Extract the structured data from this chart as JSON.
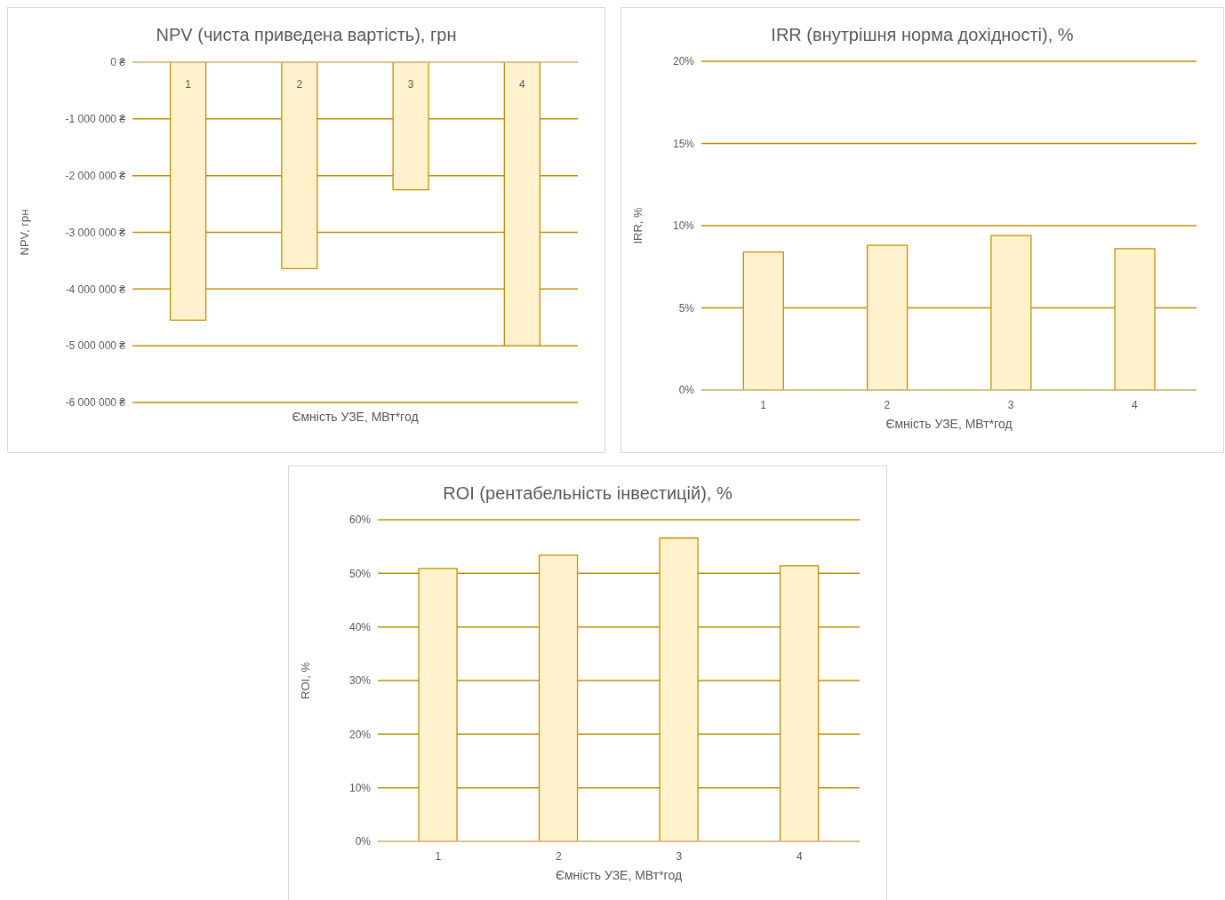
{
  "chart_data": [
    {
      "type": "bar",
      "title": "NPV (чиста приведена вартість), грн",
      "xlabel": "Ємність УЗЕ, МВт*год",
      "ylabel": "NPV, грн",
      "categories": [
        "1",
        "2",
        "3",
        "4"
      ],
      "series": [
        {
          "color": "#fff2cc",
          "values": [
            -4550000,
            -3640000,
            -2250000,
            -5000000
          ]
        }
      ],
      "ylim": [
        -6000000,
        0
      ],
      "yticks": [
        {
          "value": -6000000,
          "label": "-6 000 000 ₴"
        },
        {
          "value": -5000000,
          "label": "-5 000 000 ₴"
        },
        {
          "value": -4000000,
          "label": "-4 000 000 ₴"
        },
        {
          "value": -3000000,
          "label": "-3 000 000 ₴"
        },
        {
          "value": -2000000,
          "label": "-2 000 000 ₴"
        },
        {
          "value": -1000000,
          "label": "-1 000 000 ₴"
        },
        {
          "value": 0,
          "label": "0 ₴"
        }
      ],
      "grid": "y",
      "legend": false
    },
    {
      "type": "bar",
      "title": "IRR (внутрішня норма дохідності), %",
      "xlabel": "Ємність УЗЕ, МВт*год",
      "ylabel": "IRR, %",
      "categories": [
        "1",
        "2",
        "3",
        "4"
      ],
      "series": [
        {
          "color": "#fff2cc",
          "values": [
            8.4,
            8.8,
            9.4,
            8.6
          ]
        }
      ],
      "ylim": [
        0,
        20
      ],
      "yticks": [
        {
          "value": 0,
          "label": "0%"
        },
        {
          "value": 5,
          "label": "5%"
        },
        {
          "value": 10,
          "label": "10%"
        },
        {
          "value": 15,
          "label": "15%"
        },
        {
          "value": 20,
          "label": "20%"
        }
      ],
      "grid": "y",
      "legend": false
    },
    {
      "type": "bar",
      "title": "ROI (рентабельність інвестицій), %",
      "xlabel": "Ємність УЗЕ, МВт*год",
      "ylabel": "ROI, %",
      "categories": [
        "1",
        "2",
        "3",
        "4"
      ],
      "series": [
        {
          "color": "#fff2cc",
          "values": [
            50.9,
            53.4,
            56.6,
            51.4
          ]
        }
      ],
      "ylim": [
        0,
        60
      ],
      "yticks": [
        {
          "value": 0,
          "label": "0%"
        },
        {
          "value": 10,
          "label": "10%"
        },
        {
          "value": 20,
          "label": "20%"
        },
        {
          "value": 30,
          "label": "30%"
        },
        {
          "value": 40,
          "label": "40%"
        },
        {
          "value": 50,
          "label": "50%"
        },
        {
          "value": 60,
          "label": "60%"
        }
      ],
      "grid": "y",
      "legend": false
    }
  ]
}
